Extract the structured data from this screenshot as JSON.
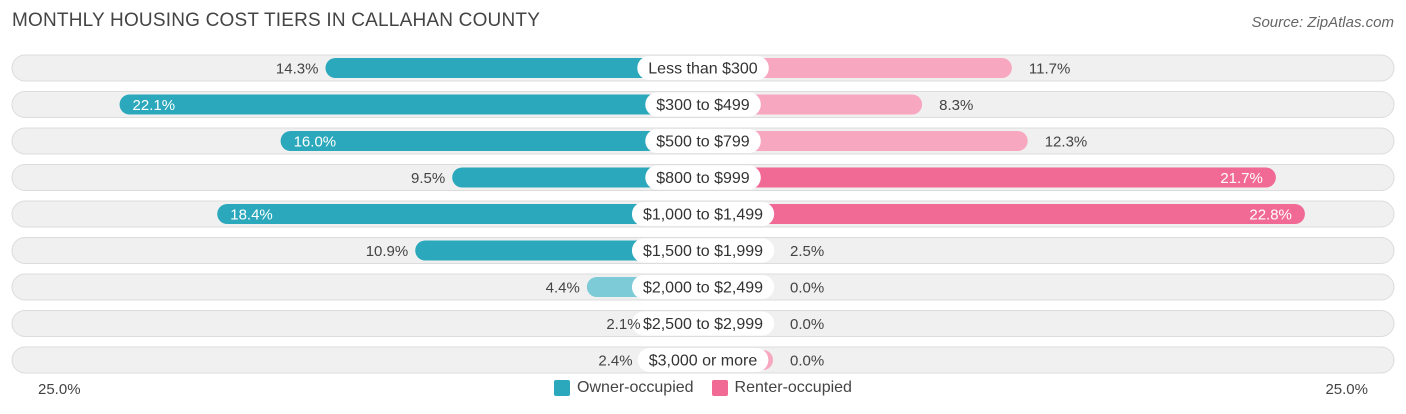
{
  "title": "MONTHLY HOUSING COST TIERS IN CALLAHAN COUNTY",
  "source": "Source: ZipAtlas.com",
  "colors": {
    "owner_strong": "#2BA8BB",
    "owner_light": "#7DCBD6",
    "renter_strong": "#F06A95",
    "renter_light": "#F7A8C0",
    "row_bg": "#F0F0F0",
    "row_border": "#DCDCDC"
  },
  "chart_data": {
    "type": "bar",
    "orientation": "horizontal-diverging",
    "categories": [
      "Less than $300",
      "$300 to $499",
      "$500 to $799",
      "$800 to $999",
      "$1,000 to $1,499",
      "$1,500 to $1,999",
      "$2,000 to $2,499",
      "$2,500 to $2,999",
      "$3,000 or more"
    ],
    "series": [
      {
        "name": "Owner-occupied",
        "values": [
          14.3,
          22.1,
          16.0,
          9.5,
          18.4,
          10.9,
          4.4,
          2.1,
          2.4
        ]
      },
      {
        "name": "Renter-occupied",
        "values": [
          11.7,
          8.3,
          12.3,
          21.7,
          22.8,
          2.5,
          0.0,
          0.0,
          0.0
        ]
      }
    ],
    "value_labels": {
      "owner": [
        "14.3%",
        "22.1%",
        "16.0%",
        "9.5%",
        "18.4%",
        "10.9%",
        "4.4%",
        "2.1%",
        "2.4%"
      ],
      "renter": [
        "11.7%",
        "8.3%",
        "12.3%",
        "21.7%",
        "22.8%",
        "2.5%",
        "0.0%",
        "0.0%",
        "0.0%"
      ]
    },
    "xlim": [
      0,
      25
    ],
    "axis_labels": {
      "left": "25.0%",
      "right": "25.0%"
    },
    "legend": {
      "position": "bottom-center",
      "owner_label": "Owner-occupied",
      "renter_label": "Renter-occupied"
    }
  }
}
